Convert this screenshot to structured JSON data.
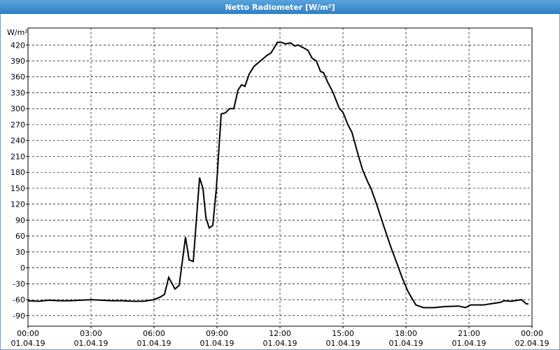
{
  "chart_data": {
    "type": "line",
    "title": "Netto Radiometer [W/m²]",
    "y_label": "W/m²",
    "x": [
      0,
      0.5,
      1,
      1.5,
      2,
      2.5,
      3,
      3.5,
      4,
      4.5,
      5,
      5.5,
      6,
      6.3,
      6.5,
      6.7,
      7.0,
      7.2,
      7.5,
      7.67,
      7.87,
      8.17,
      8.33,
      8.47,
      8.63,
      8.8,
      8.97,
      9.2,
      9.4,
      9.6,
      9.8,
      10.0,
      10.17,
      10.33,
      10.53,
      10.77,
      11.07,
      11.37,
      11.57,
      11.73,
      11.87,
      12.07,
      12.27,
      12.5,
      12.7,
      12.87,
      13.1,
      13.33,
      13.53,
      13.73,
      13.93,
      14.07,
      14.27,
      14.53,
      14.83,
      15.0,
      15.23,
      15.43,
      15.67,
      15.93,
      16.2,
      16.33,
      16.6,
      16.93,
      17.27,
      17.6,
      17.83,
      18.1,
      18.47,
      18.83,
      19.33,
      19.83,
      20.5,
      20.83,
      21.07,
      21.67,
      22.17,
      22.5,
      22.67,
      23,
      23.5,
      23.73,
      23.83
    ],
    "values": [
      -62,
      -63,
      -61,
      -62,
      -62,
      -61,
      -60,
      -61,
      -62,
      -62,
      -63,
      -63,
      -60,
      -55,
      -50,
      -18,
      -40,
      -33,
      58,
      15,
      12,
      170,
      150,
      95,
      75,
      80,
      150,
      290,
      292,
      300,
      300,
      335,
      345,
      342,
      365,
      380,
      390,
      400,
      405,
      415,
      425,
      425,
      422,
      424,
      418,
      420,
      415,
      410,
      395,
      390,
      370,
      368,
      350,
      330,
      300,
      293,
      270,
      255,
      220,
      185,
      160,
      150,
      120,
      80,
      40,
      5,
      -20,
      -45,
      -70,
      -75,
      -75,
      -73,
      -72,
      -75,
      -70,
      -70,
      -67,
      -65,
      -62,
      -63,
      -60,
      -68,
      -68
    ],
    "color": "#000000",
    "xlim": [
      0,
      24
    ],
    "xticks": [
      {
        "value": 0,
        "label": "00:00\n01.04.19"
      },
      {
        "value": 3,
        "label": "03:00\n01.04.19"
      },
      {
        "value": 6,
        "label": "06:00\n01.04.19"
      },
      {
        "value": 9,
        "label": "09:00\n01.04.19"
      },
      {
        "value": 12,
        "label": "12:00\n01.04.19"
      },
      {
        "value": 15,
        "label": "15:00\n01.04.19"
      },
      {
        "value": 18,
        "label": "18:00\n01.04.19"
      },
      {
        "value": 21,
        "label": "21:00\n01.04.19"
      },
      {
        "value": 24,
        "label": "00:00\n02.04.19"
      }
    ],
    "ylim": [
      -110,
      452
    ],
    "yticks": [
      -90,
      -60,
      -30,
      0,
      30,
      60,
      90,
      120,
      150,
      180,
      210,
      240,
      270,
      300,
      330,
      360,
      390,
      420
    ],
    "grid": true
  }
}
